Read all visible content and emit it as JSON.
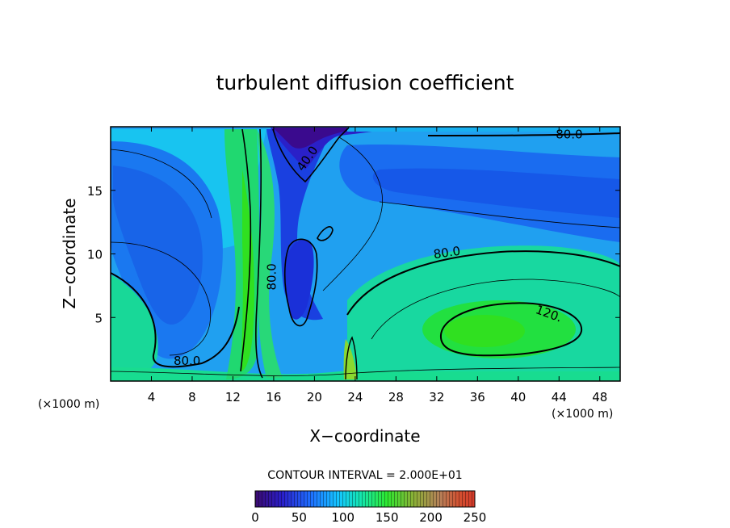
{
  "chart_data": {
    "type": "heatmap",
    "title": "turbulent diffusion coefficient",
    "xlabel": "X−coordinate",
    "ylabel": "Z−coordinate",
    "x_unit": "(×1000 m)",
    "xlim": [
      0,
      50
    ],
    "ylim": [
      0,
      20
    ],
    "xticks": [
      4,
      8,
      12,
      16,
      20,
      24,
      28,
      32,
      36,
      40,
      44,
      48
    ],
    "yticks": [
      5,
      10,
      15
    ],
    "contour_interval_text": "CONTOUR INTERVAL = 2.000E+01",
    "contour_interval": 20,
    "colorbar": {
      "min": 0,
      "max": 250,
      "ticks": [
        0,
        50,
        100,
        150,
        200,
        250
      ]
    },
    "contour_labels": [
      {
        "text": "80.0",
        "x": 45,
        "y": 19.4
      },
      {
        "text": "40.0",
        "x": 19.3,
        "y": 17.5
      },
      {
        "text": "80.0",
        "x": 33,
        "y": 10.1
      },
      {
        "text": "80.0",
        "x": 15.8,
        "y": 8.2
      },
      {
        "text": "120.",
        "x": 43,
        "y": 5.3
      },
      {
        "text": "80.0",
        "x": 7.5,
        "y": 1.6
      }
    ],
    "grid": false
  }
}
